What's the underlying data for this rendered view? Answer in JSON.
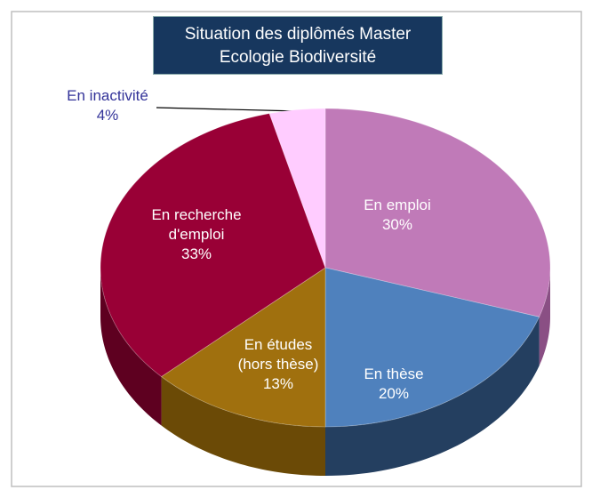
{
  "chart_data": {
    "type": "pie",
    "title": "Situation des diplômés Master\nEcologie Biodiversité",
    "categories": [
      "En emploi",
      "En thèse",
      "En études\n(hors thèse)",
      "En recherche\nd'emploi",
      "En inactivité"
    ],
    "values": [
      30,
      20,
      13,
      33,
      4
    ],
    "value_labels": [
      "30%",
      "20%",
      "13%",
      "33%",
      "4%"
    ],
    "colors": [
      "#c07ab8",
      "#4f81bd",
      "#a0700e",
      "#990036",
      "#ffccff"
    ],
    "side_colors": [
      "#8a4f84",
      "#243f60",
      "#6b4a06",
      "#5e0020",
      "#c99ac9"
    ]
  }
}
